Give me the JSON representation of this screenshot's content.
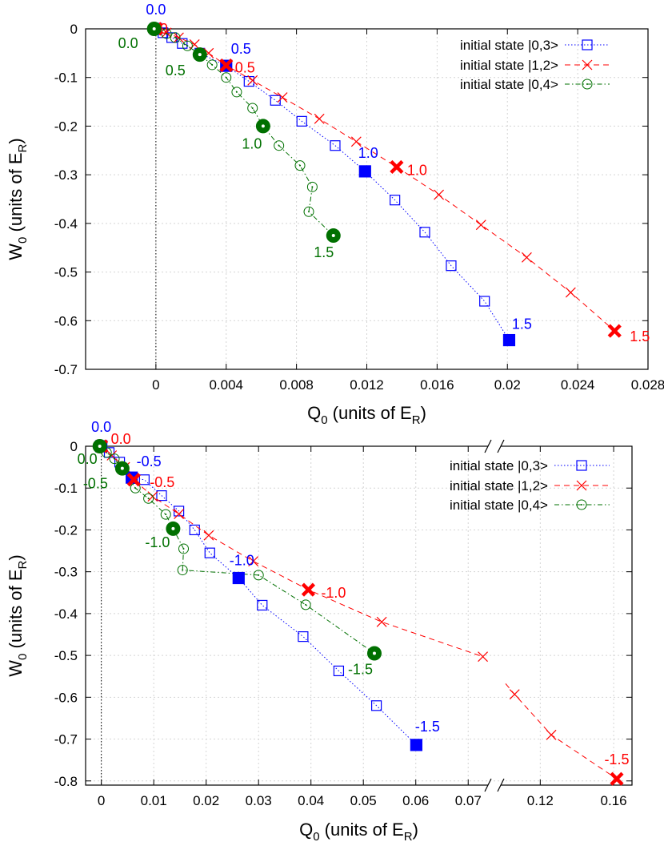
{
  "chart_data": [
    {
      "type": "line",
      "xlabel_main": "Q",
      "xlabel_sub": "0",
      "xlabel_tail": " (units of E",
      "xlabel_sub2": "R",
      "xlabel_close": ")",
      "ylabel_main": "W",
      "ylabel_sub": "0",
      "ylabel_tail": " (units of E",
      "ylabel_sub2": "R",
      "ylabel_close": ")",
      "xlim": [
        -0.004,
        0.028
      ],
      "ylim": [
        -0.7,
        0
      ],
      "xticks": [
        0,
        0.004,
        0.008,
        0.012,
        0.016,
        0.02,
        0.024,
        0.028
      ],
      "xtick_labels": [
        "0",
        "0.004",
        "0.008",
        "0.012",
        "0.016",
        "0.02",
        "0.024",
        "0.028"
      ],
      "yticks": [
        0,
        -0.1,
        -0.2,
        -0.3,
        -0.4,
        -0.5,
        -0.6,
        -0.7
      ],
      "ytick_labels": [
        "0",
        "-0.1",
        "-0.2",
        "-0.3",
        "-0.4",
        "-0.5",
        "-0.6",
        "-0.7"
      ],
      "legend": [
        "initial state |0,3>",
        "initial state |1,2>",
        "initial state |0,4>"
      ],
      "series": [
        {
          "name": "initial state |0,3>",
          "color": "#0000ff",
          "marker": "square",
          "x": [
            0.0,
            0.0004,
            0.0009,
            0.0015,
            0.0025,
            0.004,
            0.0053,
            0.0068,
            0.0083,
            0.0102,
            0.0119,
            0.0136,
            0.0153,
            0.0168,
            0.0187,
            0.0201
          ],
          "y": [
            0.0,
            -0.008,
            -0.018,
            -0.03,
            -0.05,
            -0.076,
            -0.108,
            -0.147,
            -0.19,
            -0.24,
            -0.293,
            -0.352,
            -0.418,
            -0.487,
            -0.56,
            -0.64
          ],
          "highlight": [
            {
              "x": 0.0,
              "y": 0.0,
              "label": "0.0"
            },
            {
              "x": 0.004,
              "y": -0.076,
              "label": "0.5"
            },
            {
              "x": 0.0119,
              "y": -0.293,
              "label": "1.0"
            },
            {
              "x": 0.0201,
              "y": -0.64,
              "label": "1.5"
            }
          ]
        },
        {
          "name": "initial state |1,2>",
          "color": "#ff0000",
          "marker": "x",
          "x": [
            0.0,
            0.0006,
            0.0013,
            0.0022,
            0.003,
            0.004,
            0.0055,
            0.0072,
            0.0093,
            0.0114,
            0.0137,
            0.0161,
            0.0185,
            0.0211,
            0.0236,
            0.0261
          ],
          "y": [
            0.0,
            -0.008,
            -0.018,
            -0.032,
            -0.05,
            -0.075,
            -0.106,
            -0.141,
            -0.185,
            -0.232,
            -0.284,
            -0.341,
            -0.403,
            -0.47,
            -0.542,
            -0.621
          ],
          "highlight": [
            {
              "x": 0.0,
              "y": 0.0,
              "label": "0.0"
            },
            {
              "x": 0.004,
              "y": -0.075,
              "label": "0.5"
            },
            {
              "x": 0.0137,
              "y": -0.284,
              "label": "1.0"
            },
            {
              "x": 0.0261,
              "y": -0.621,
              "label": "1.5"
            }
          ]
        },
        {
          "name": "initial state |0,4>",
          "color": "#007000",
          "marker": "circle",
          "x": [
            -0.0001,
            0.0006,
            0.0011,
            0.0018,
            0.0025,
            0.0032,
            0.004,
            0.0046,
            0.0055,
            0.0061,
            0.007,
            0.0082,
            0.0089,
            0.0087,
            0.0101
          ],
          "y": [
            0.0,
            -0.01,
            -0.018,
            -0.035,
            -0.053,
            -0.074,
            -0.1,
            -0.13,
            -0.163,
            -0.2,
            -0.24,
            -0.281,
            -0.325,
            -0.376,
            -0.425
          ],
          "highlight": [
            {
              "x": -0.0001,
              "y": 0.0,
              "label": "0.0"
            },
            {
              "x": 0.0025,
              "y": -0.053,
              "label": "0.5"
            },
            {
              "x": 0.0061,
              "y": -0.2,
              "label": "1.0"
            },
            {
              "x": 0.0101,
              "y": -0.425,
              "label": "1.5"
            }
          ]
        }
      ]
    },
    {
      "type": "line",
      "xlabel_main": "Q",
      "xlabel_sub": "0",
      "xlabel_tail": " (units of E",
      "xlabel_sub2": "R",
      "xlabel_close": ")",
      "ylabel_main": "W",
      "ylabel_sub": "0",
      "ylabel_tail": " (units of E",
      "ylabel_sub2": "R",
      "ylabel_close": ")",
      "broken_axis": {
        "left_range": [
          -0.003,
          0.075
        ],
        "right_range": [
          0.095,
          0.17
        ]
      },
      "ylim": [
        -0.81,
        0
      ],
      "xticks": [
        0,
        0.01,
        0.02,
        0.03,
        0.04,
        0.05,
        0.06,
        0.07,
        0.12,
        0.16
      ],
      "xtick_labels": [
        "0",
        "0.01",
        "0.02",
        "0.03",
        "0.04",
        "0.05",
        "0.06",
        "0.07",
        "0.12",
        "0.16"
      ],
      "yticks": [
        0,
        -0.1,
        -0.2,
        -0.3,
        -0.4,
        -0.5,
        -0.6,
        -0.7,
        -0.8
      ],
      "ytick_labels": [
        "0",
        "-0.1",
        "-0.2",
        "-0.3",
        "-0.4",
        "-0.5",
        "-0.6",
        "-0.7",
        "-0.8"
      ],
      "legend": [
        "initial state |0,3>",
        "initial state |1,2>",
        "initial state |0,4>"
      ],
      "series": [
        {
          "name": "initial state |0,3>",
          "color": "#0000ff",
          "marker": "square",
          "x": [
            0.0,
            0.0015,
            0.0035,
            0.0058,
            0.0082,
            0.0115,
            0.0148,
            0.0178,
            0.0207,
            0.0262,
            0.0307,
            0.0385,
            0.0453,
            0.0525,
            0.0601
          ],
          "y": [
            0.0,
            -0.015,
            -0.038,
            -0.075,
            -0.08,
            -0.118,
            -0.155,
            -0.2,
            -0.255,
            -0.315,
            -0.38,
            -0.455,
            -0.537,
            -0.62,
            -0.714
          ],
          "highlight": [
            {
              "x": 0.0,
              "y": 0.0,
              "label": "0.0"
            },
            {
              "x": 0.0058,
              "y": -0.075,
              "label": "-0.5"
            },
            {
              "x": 0.0262,
              "y": -0.315,
              "label": "-1.0"
            },
            {
              "x": 0.0601,
              "y": -0.714,
              "label": "-1.5"
            }
          ]
        },
        {
          "name": "initial state |1,2>",
          "color": "#ff0000",
          "marker": "x",
          "x": [
            0.0,
            0.002,
            0.0045,
            0.0062,
            0.0098,
            0.0148,
            0.0205,
            0.029,
            0.0395,
            0.0535,
            0.0728,
            0.106,
            0.126,
            0.1617
          ],
          "y": [
            0.0,
            -0.022,
            -0.05,
            -0.08,
            -0.12,
            -0.162,
            -0.213,
            -0.275,
            -0.343,
            -0.42,
            -0.503,
            -0.593,
            -0.69,
            -0.795
          ],
          "highlight": [
            {
              "x": 0.0,
              "y": 0.0,
              "label": "0.0"
            },
            {
              "x": 0.0062,
              "y": -0.08,
              "label": "-0.5"
            },
            {
              "x": 0.0395,
              "y": -0.343,
              "label": "-1.0"
            },
            {
              "x": 0.1617,
              "y": -0.795,
              "label": "-1.5"
            }
          ]
        },
        {
          "name": "initial state |0,4>",
          "color": "#007000",
          "marker": "circle",
          "x": [
            -0.0003,
            0.001,
            0.0025,
            0.004,
            0.0065,
            0.009,
            0.0123,
            0.0137,
            0.0157,
            0.0155,
            0.03,
            0.039,
            0.0521
          ],
          "y": [
            0.0,
            -0.015,
            -0.03,
            -0.053,
            -0.1,
            -0.125,
            -0.163,
            -0.197,
            -0.245,
            -0.296,
            -0.308,
            -0.379,
            -0.495
          ],
          "highlight": [
            {
              "x": -0.0003,
              "y": 0.0,
              "label": "0.0"
            },
            {
              "x": 0.004,
              "y": -0.053,
              "label": "-0.5"
            },
            {
              "x": 0.0137,
              "y": -0.197,
              "label": "-1.0"
            },
            {
              "x": 0.0521,
              "y": -0.495,
              "label": "-1.5"
            }
          ]
        }
      ]
    }
  ]
}
